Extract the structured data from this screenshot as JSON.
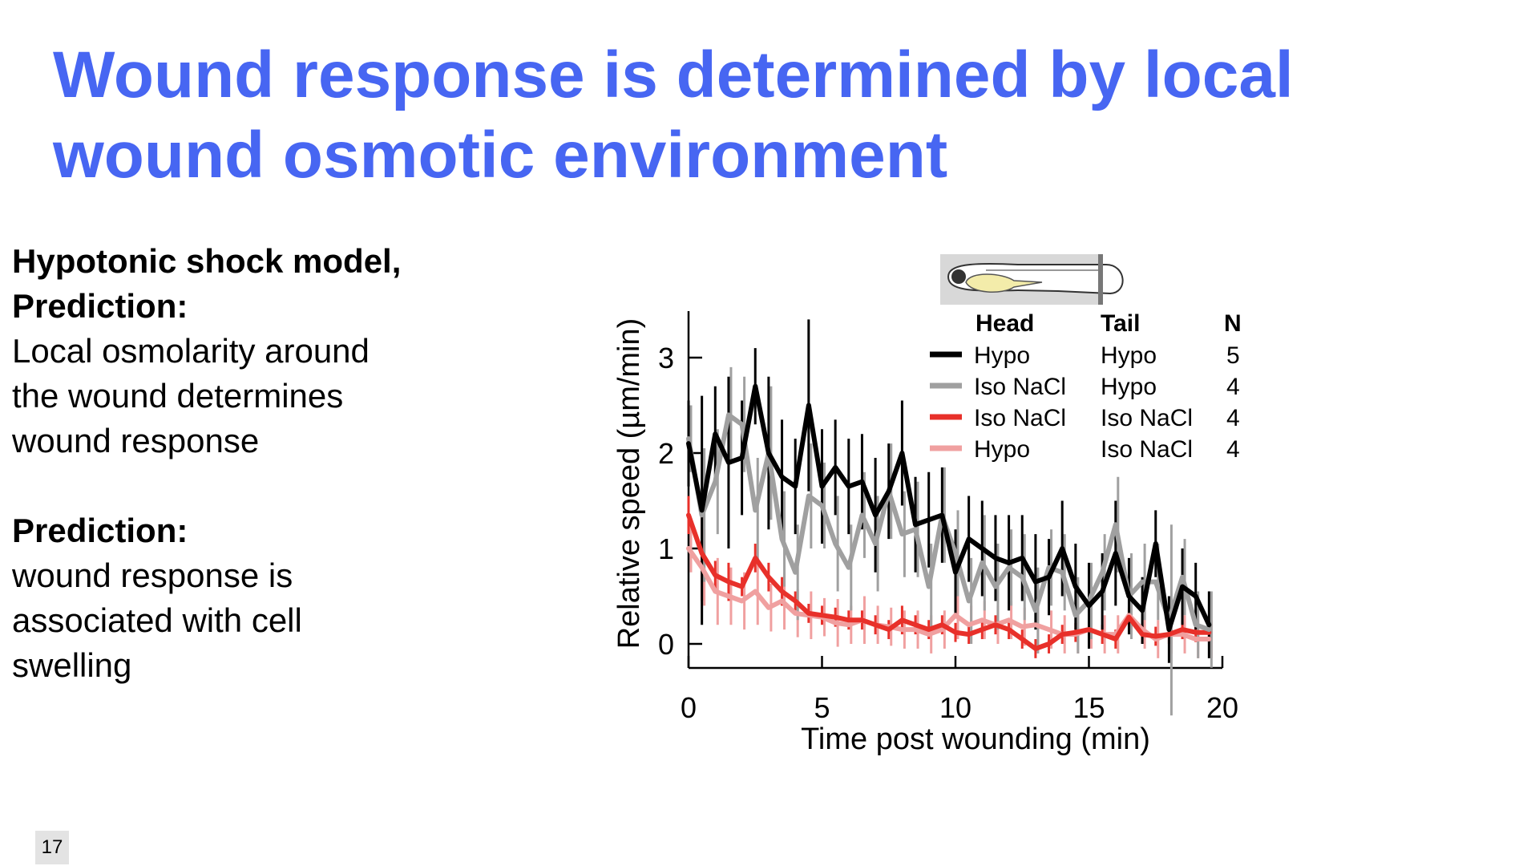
{
  "slide": {
    "title_line1": "Wound response is determined by local",
    "title_line2": "wound osmotic environment",
    "page_number": "17"
  },
  "left_text": {
    "p1_heading1": "Hypotonic shock model,",
    "p1_heading2": "Prediction:",
    "p1_line1": "Local osmolarity around",
    "p1_line2": "the wound determines",
    "p1_line3": "wound response",
    "p2_heading": "Prediction:",
    "p2_line1": "wound response is",
    "p2_line2": "associated with cell",
    "p2_line3": "swelling"
  },
  "colors": {
    "title": "#4766f2",
    "hypo_hypo": "#000000",
    "isonacl_hypo": "#a0a0a0",
    "isonacl_isonacl": "#e8302a",
    "hypo_isonacl": "#f0a0a0"
  },
  "chart_data": {
    "type": "line",
    "xlabel": "Time post wounding (min)",
    "ylabel": "Relative speed (µm/min)",
    "xlim": [
      0,
      20
    ],
    "ylim": [
      -0.3,
      3.5
    ],
    "xticks": [
      "0",
      "5",
      "10",
      "15",
      "20"
    ],
    "yticks": [
      "0",
      "1",
      "2",
      "3"
    ],
    "legend": {
      "placement": "top-right",
      "headers": [
        "Head",
        "Tail",
        "N"
      ],
      "rows": [
        {
          "head": "Hypo",
          "tail": "Hypo",
          "n": "5"
        },
        {
          "head": "Iso NaCl",
          "tail": "Hypo",
          "n": "4"
        },
        {
          "head": "Iso NaCl",
          "tail": "Iso NaCl",
          "n": "4"
        },
        {
          "head": "Hypo",
          "tail": "Iso NaCl",
          "n": "4"
        }
      ]
    },
    "x": [
      0,
      0.5,
      1,
      1.5,
      2,
      2.5,
      3,
      3.5,
      4,
      4.5,
      5,
      5.5,
      6,
      6.5,
      7,
      7.5,
      8,
      8.5,
      9,
      9.5,
      10,
      10.5,
      11,
      11.5,
      12,
      12.5,
      13,
      13.5,
      14,
      14.5,
      15,
      15.5,
      16,
      16.5,
      17,
      17.5,
      18,
      18.5,
      19,
      19.5
    ],
    "series": [
      {
        "key": "hypo_hypo",
        "color": "#000000",
        "values": [
          2.1,
          1.4,
          2.2,
          1.9,
          1.95,
          2.7,
          2.0,
          1.75,
          1.65,
          2.5,
          1.65,
          1.85,
          1.65,
          1.7,
          1.35,
          1.6,
          2.0,
          1.25,
          1.3,
          1.35,
          0.75,
          1.1,
          1.0,
          0.9,
          0.85,
          0.9,
          0.65,
          0.7,
          1.0,
          0.6,
          0.4,
          0.55,
          0.95,
          0.5,
          0.35,
          1.05,
          0.15,
          0.6,
          0.5,
          0.2
        ],
        "errors": [
          0.45,
          1.2,
          0.5,
          0.9,
          0.6,
          0.4,
          0.8,
          0.6,
          0.5,
          0.9,
          0.6,
          0.5,
          0.5,
          0.5,
          0.6,
          0.5,
          0.55,
          0.5,
          0.5,
          0.5,
          0.45,
          0.45,
          0.5,
          0.45,
          0.5,
          0.45,
          0.5,
          0.4,
          0.5,
          0.45,
          0.45,
          0.4,
          0.55,
          0.4,
          0.35,
          0.35,
          0.35,
          0.4,
          0.35,
          0.35
        ]
      },
      {
        "key": "isonacl_hypo",
        "color": "#a0a0a0",
        "values": [
          2.15,
          1.35,
          1.7,
          2.4,
          2.3,
          1.4,
          2.0,
          1.1,
          0.75,
          1.55,
          1.45,
          1.05,
          0.8,
          1.35,
          1.05,
          1.6,
          1.15,
          1.2,
          0.6,
          1.35,
          0.95,
          0.45,
          0.85,
          0.6,
          0.8,
          0.7,
          0.35,
          0.8,
          0.75,
          0.3,
          0.45,
          0.75,
          1.25,
          0.5,
          0.65,
          0.65,
          0.25,
          0.7,
          0.2,
          0.15
        ],
        "errors": [
          0.35,
          0.7,
          0.55,
          0.5,
          0.5,
          0.55,
          0.7,
          0.5,
          0.5,
          0.55,
          0.45,
          0.5,
          0.45,
          0.45,
          0.5,
          0.5,
          0.45,
          0.5,
          0.45,
          0.5,
          0.45,
          0.45,
          0.5,
          0.45,
          0.4,
          0.45,
          0.45,
          0.4,
          0.4,
          0.4,
          0.4,
          0.4,
          0.5,
          0.45,
          0.4,
          0.4,
          1.0,
          0.4,
          0.35,
          0.4
        ]
      },
      {
        "key": "isonacl_isonacl",
        "color": "#e8302a",
        "values": [
          1.35,
          0.95,
          0.72,
          0.65,
          0.6,
          0.9,
          0.7,
          0.55,
          0.45,
          0.32,
          0.3,
          0.28,
          0.25,
          0.25,
          0.2,
          0.15,
          0.25,
          0.2,
          0.15,
          0.2,
          0.12,
          0.1,
          0.15,
          0.2,
          0.15,
          0.05,
          -0.05,
          0.0,
          0.1,
          0.12,
          0.15,
          0.1,
          0.05,
          0.28,
          0.1,
          0.08,
          0.1,
          0.15,
          0.12,
          0.12
        ],
        "errors": [
          0.2,
          0.5,
          0.15,
          0.2,
          0.1,
          0.15,
          0.15,
          0.15,
          0.1,
          0.1,
          0.1,
          0.1,
          0.1,
          0.1,
          0.1,
          0.1,
          0.15,
          0.1,
          0.1,
          0.1,
          0.1,
          0.1,
          0.1,
          0.1,
          0.1,
          0.1,
          0.1,
          0.1,
          0.1,
          0.1,
          0.1,
          0.1,
          0.1,
          0.1,
          0.1,
          0.1,
          0.1,
          0.1,
          0.1,
          0.1
        ]
      },
      {
        "key": "hypo_isonacl",
        "color": "#f0a0a0",
        "values": [
          1.0,
          0.8,
          0.55,
          0.5,
          0.45,
          0.55,
          0.38,
          0.45,
          0.32,
          0.3,
          0.28,
          0.22,
          0.2,
          0.25,
          0.2,
          0.18,
          0.15,
          0.15,
          0.1,
          0.15,
          0.3,
          0.2,
          0.25,
          0.2,
          0.25,
          0.18,
          0.2,
          0.15,
          0.1,
          0.1,
          0.15,
          0.1,
          0.1,
          0.3,
          0.15,
          0.05,
          0.1,
          0.1,
          0.05,
          0.05
        ],
        "errors": [
          0.25,
          0.4,
          0.35,
          0.3,
          0.3,
          0.35,
          0.25,
          0.3,
          0.25,
          0.25,
          0.2,
          0.25,
          0.2,
          0.25,
          0.2,
          0.2,
          0.2,
          0.2,
          0.2,
          0.2,
          0.25,
          0.2,
          0.2,
          0.2,
          0.2,
          0.2,
          0.2,
          0.2,
          0.2,
          0.2,
          0.2,
          0.2,
          0.2,
          0.2,
          0.2,
          0.2,
          0.2,
          0.2,
          0.2,
          0.2
        ]
      }
    ]
  }
}
